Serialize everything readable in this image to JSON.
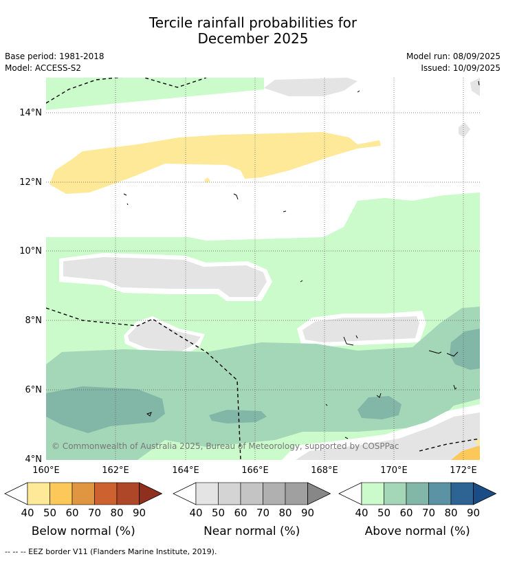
{
  "title_line1": "Tercile rainfall probabilities for",
  "title_line2": "December 2025",
  "meta": {
    "base_period": "Base period: 1981-2018",
    "model": "Model: ACCESS-S2",
    "model_run": "Model run: 08/09/2025",
    "issued": "Issued: 10/09/2025"
  },
  "map": {
    "lat_ticks": [
      "14°N",
      "12°N",
      "10°N",
      "8°N",
      "6°N",
      "4°N"
    ],
    "lon_ticks": [
      "160°E",
      "162°E",
      "164°E",
      "166°E",
      "168°E",
      "170°E",
      "172°E"
    ],
    "copyright": "© Commonwealth of Australia 2025, Bureau of Meteorology, supported by COSPPac"
  },
  "colorbars": [
    {
      "title": "Below normal (%)",
      "ticks": [
        "40",
        "50",
        "60",
        "70",
        "80",
        "90"
      ],
      "colors": [
        "#fee999",
        "#fdc85a",
        "#e09540",
        "#cd6130",
        "#ae4728",
        "#8f2f1e"
      ]
    },
    {
      "title": "Near normal (%)",
      "ticks": [
        "40",
        "50",
        "60",
        "70",
        "80",
        "90"
      ],
      "colors": [
        "#e4e4e4",
        "#d4d4d4",
        "#c4c4c4",
        "#b0b0b0",
        "#a0a0a0",
        "#878787"
      ]
    },
    {
      "title": "Above normal (%)",
      "ticks": [
        "40",
        "50",
        "60",
        "70",
        "80",
        "90"
      ],
      "colors": [
        "#cbfbcb",
        "#a4d6b8",
        "#82b7a8",
        "#5c93a4",
        "#2e6494",
        "#1a4d86"
      ]
    }
  ],
  "footnote": "--  --  -- EEZ border V11 (Flanders Marine Institute, 2019)."
}
